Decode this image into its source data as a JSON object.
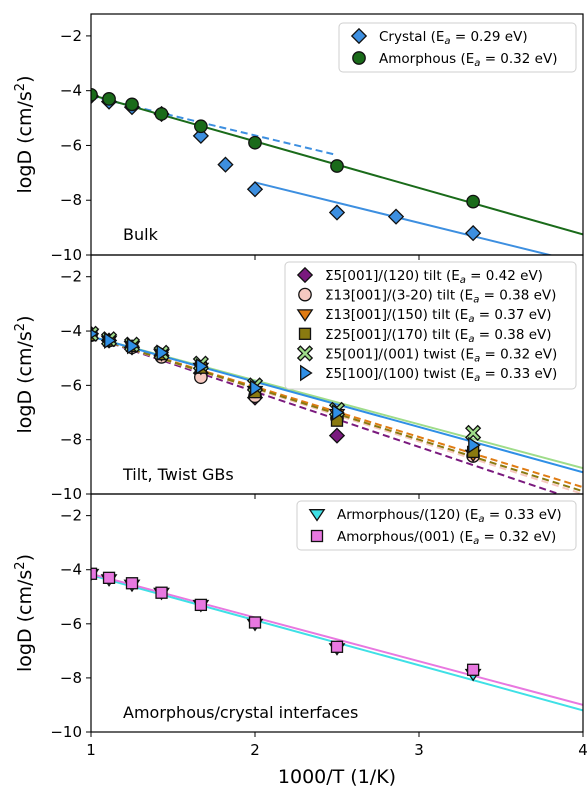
{
  "chart_data": {
    "type": "scatter",
    "shared_x": {
      "label": "1000/T (1/K)",
      "lim": [
        1,
        4
      ],
      "ticks": [
        1,
        2,
        3,
        4
      ],
      "tick_labels": [
        "1",
        "2",
        "3",
        "4"
      ]
    },
    "panels": [
      {
        "annotation": "Bulk",
        "ylabel": "logD (cm/s²)",
        "ylim": [
          -10,
          -1.2
        ],
        "yticks": [
          -10,
          -8,
          -6,
          -4,
          -2
        ],
        "ytick_labels": [
          "−10",
          "−8",
          "−6",
          "−4",
          "−2"
        ],
        "legend_position": "top-right",
        "series": [
          {
            "name": "Crystal (E_a = 0.29 eV)",
            "legend_label": "Crystal (E",
            "legend_ea": "a",
            "legend_tail": " = 0.29 eV)",
            "marker": "diamond",
            "color": "#3d8fe0",
            "x": [
              1.0,
              1.11,
              1.25,
              1.43,
              1.67,
              1.82,
              2.0,
              2.5,
              2.86,
              3.33
            ],
            "y": [
              -4.2,
              -4.4,
              -4.6,
              -4.85,
              -5.65,
              -6.7,
              -7.6,
              -8.45,
              -8.6,
              -9.2
            ],
            "fits": [
              {
                "style": "dashed",
                "x": [
                  1.0,
                  2.5
                ],
                "y": [
                  -4.2,
                  -6.35
                ]
              },
              {
                "style": "solid",
                "x": [
                  2.0,
                  4.0
                ],
                "y": [
                  -7.35,
                  -10.3
                ]
              }
            ]
          },
          {
            "name": "Amorphous (E_a = 0.32 eV)",
            "legend_label": "Amorphous (E",
            "legend_ea": "a",
            "legend_tail": " = 0.32 eV)",
            "marker": "circle",
            "color": "#1a6b1a",
            "x": [
              1.0,
              1.11,
              1.25,
              1.43,
              1.67,
              2.0,
              2.5,
              3.33
            ],
            "y": [
              -4.15,
              -4.3,
              -4.5,
              -4.85,
              -5.3,
              -5.9,
              -6.75,
              -8.05
            ],
            "fits": [
              {
                "style": "solid",
                "x": [
                  1.0,
                  4.0
                ],
                "y": [
                  -4.15,
                  -9.25
                ]
              }
            ]
          }
        ]
      },
      {
        "annotation": "Tilt, Twist GBs",
        "ylabel": "logD (cm/s²)",
        "ylim": [
          -10,
          -1.2
        ],
        "yticks": [
          -10,
          -8,
          -6,
          -4,
          -2
        ],
        "ytick_labels": [
          "−10",
          "−8",
          "−6",
          "−4",
          "−2"
        ],
        "legend_position": "top-right",
        "series": [
          {
            "name": "Σ5[001]/(120) tilt (E_a = 0.42 eV)",
            "legend_label": "Σ5[001]/(120) tilt (E",
            "legend_ea": "a",
            "legend_tail": " = 0.42 eV)",
            "marker": "diamond",
            "color": "#7a1a7e",
            "x": [
              1.0,
              1.11,
              1.25,
              1.43,
              1.67,
              2.0,
              2.5
            ],
            "y": [
              -4.1,
              -4.35,
              -4.6,
              -4.9,
              -5.55,
              -6.45,
              -7.85
            ],
            "fits": [
              {
                "style": "dashed",
                "x": [
                  1.0,
                  4.0
                ],
                "y": [
                  -4.2,
                  -10.3
                ]
              }
            ]
          },
          {
            "name": "Σ13[001]/(3-20) tilt (E_a = 0.38 eV)",
            "legend_label": "Σ13[001]/(3-20) tilt (E",
            "legend_ea": "a",
            "legend_tail": " = 0.38 eV)",
            "marker": "circle",
            "color": "#f6c9c0",
            "x": [
              1.0,
              1.11,
              1.25,
              1.43,
              1.67,
              2.0,
              2.5,
              3.33
            ],
            "y": [
              -4.15,
              -4.35,
              -4.6,
              -4.95,
              -5.7,
              -6.4,
              -7.2,
              -8.6
            ],
            "fits": [
              {
                "style": "dashed",
                "x": [
                  1.0,
                  4.0
                ],
                "y": [
                  -4.2,
                  -10.0
                ]
              }
            ]
          },
          {
            "name": "Σ13[001]/(150) tilt (E_a = 0.37 eV)",
            "legend_label": "Σ13[001]/(150) tilt (E",
            "legend_ea": "a",
            "legend_tail": " = 0.37 eV)",
            "marker": "triangle-down",
            "color": "#e07b12",
            "x": [
              1.0,
              1.11,
              1.25,
              1.43,
              1.67,
              2.0,
              2.5,
              3.33
            ],
            "y": [
              -4.1,
              -4.35,
              -4.55,
              -4.85,
              -5.35,
              -6.2,
              -7.05,
              -8.55
            ],
            "fits": [
              {
                "style": "dashed",
                "x": [
                  1.0,
                  4.0
                ],
                "y": [
                  -4.2,
                  -9.75
                ]
              }
            ]
          },
          {
            "name": "Σ25[001]/(170) tilt (E_a = 0.38 eV)",
            "legend_label": "Σ25[001]/(170) tilt (E",
            "legend_ea": "a",
            "legend_tail": " = 0.38 eV)",
            "marker": "square",
            "color": "#8a7a10",
            "x": [
              1.0,
              1.11,
              1.25,
              1.43,
              1.67,
              2.0,
              2.5,
              3.33
            ],
            "y": [
              -4.15,
              -4.35,
              -4.55,
              -4.85,
              -5.35,
              -6.25,
              -7.3,
              -8.45
            ],
            "fits": [
              {
                "style": "dashed",
                "x": [
                  1.0,
                  4.0
                ],
                "y": [
                  -4.2,
                  -9.9
                ]
              }
            ]
          },
          {
            "name": "Σ5[001]/(001) twist (E_a = 0.32 eV)",
            "legend_label": "Σ5[001]/(001) twist (E",
            "legend_ea": "a",
            "legend_tail": " = 0.32 eV)",
            "marker": "x-filled",
            "color": "#9fdc8a",
            "x": [
              1.0,
              1.11,
              1.25,
              1.43,
              1.67,
              2.0,
              2.5,
              3.33
            ],
            "y": [
              -4.1,
              -4.3,
              -4.5,
              -4.8,
              -5.2,
              -6.0,
              -6.9,
              -7.75
            ],
            "fits": [
              {
                "style": "solid",
                "x": [
                  1.0,
                  4.0
                ],
                "y": [
                  -4.2,
                  -9.05
                ]
              }
            ]
          },
          {
            "name": "Σ5[100]/(100) twist (E_a = 0.33 eV)",
            "legend_label": "Σ5[100]/(100) twist (E",
            "legend_ea": "a",
            "legend_tail": " = 0.33 eV)",
            "marker": "triangle-right",
            "color": "#2f8fe6",
            "x": [
              1.0,
              1.11,
              1.25,
              1.43,
              1.67,
              2.0,
              2.5,
              3.33
            ],
            "y": [
              -4.1,
              -4.35,
              -4.55,
              -4.8,
              -5.3,
              -6.1,
              -7.0,
              -8.2
            ],
            "fits": [
              {
                "style": "solid",
                "x": [
                  1.0,
                  4.0
                ],
                "y": [
                  -4.2,
                  -9.2
                ]
              }
            ]
          }
        ]
      },
      {
        "annotation": "Amorphous/crystal interfaces",
        "ylabel": "logD (cm/s²)",
        "ylim": [
          -10,
          -1.2
        ],
        "yticks": [
          -10,
          -8,
          -6,
          -4,
          -2
        ],
        "ytick_labels": [
          "−10",
          "−8",
          "−6",
          "−4",
          "−2"
        ],
        "legend_position": "top-right",
        "series": [
          {
            "name": "Armorphous/(120) (E_a = 0.33 eV)",
            "legend_label": "Armorphous/(120) (E",
            "legend_ea": "a",
            "legend_tail": " = 0.33 eV)",
            "marker": "triangle-down",
            "color": "#3fe0e6",
            "x": [
              1.0,
              1.11,
              1.25,
              1.43,
              1.67,
              2.0,
              2.5,
              3.33
            ],
            "y": [
              -4.15,
              -4.35,
              -4.55,
              -4.85,
              -5.3,
              -6.0,
              -6.9,
              -7.85
            ],
            "fits": [
              {
                "style": "solid",
                "x": [
                  1.0,
                  4.0
                ],
                "y": [
                  -4.2,
                  -9.2
                ]
              }
            ]
          },
          {
            "name": "Amorphous/(001) (E_a = 0.32 eV)",
            "legend_label": "Amorphous/(001) (E",
            "legend_ea": "a",
            "legend_tail": " = 0.32 eV)",
            "marker": "square",
            "color": "#e878e0",
            "x": [
              1.0,
              1.11,
              1.25,
              1.43,
              1.67,
              2.0,
              2.5,
              3.33
            ],
            "y": [
              -4.15,
              -4.3,
              -4.5,
              -4.85,
              -5.3,
              -5.95,
              -6.85,
              -7.7
            ],
            "fits": [
              {
                "style": "solid",
                "x": [
                  1.0,
                  4.0
                ],
                "y": [
                  -4.15,
                  -9.0
                ]
              }
            ]
          }
        ]
      }
    ]
  }
}
